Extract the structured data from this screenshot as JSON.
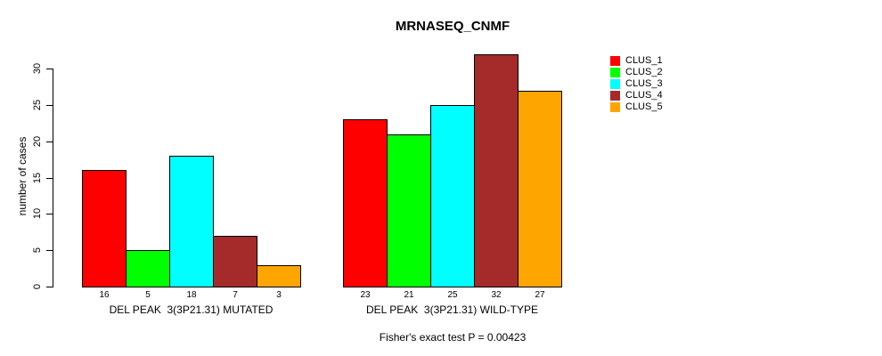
{
  "chart_data": {
    "type": "bar",
    "title": "MRNASEQ_CNMF",
    "ylabel": "number of cases",
    "ylim": [
      0,
      30
    ],
    "yticks": [
      0,
      5,
      10,
      15,
      20,
      25,
      30
    ],
    "grid": false,
    "legend_position": "top-right",
    "bar_value_labels_shown": true,
    "series": [
      {
        "name": "CLUS_1",
        "color": "#FF0000"
      },
      {
        "name": "CLUS_2",
        "color": "#00FF00"
      },
      {
        "name": "CLUS_3",
        "color": "#00FFFF"
      },
      {
        "name": "CLUS_4",
        "color": "#A52A2A"
      },
      {
        "name": "CLUS_5",
        "color": "#FFA500"
      }
    ],
    "groups": [
      {
        "label": "DEL PEAK  3(3P21.31) MUTATED",
        "values": [
          16,
          5,
          18,
          7,
          3
        ]
      },
      {
        "label": "DEL PEAK  3(3P21.31) WILD-TYPE",
        "values": [
          23,
          21,
          25,
          32,
          27
        ]
      }
    ],
    "annotation": "Fisher's exact test P = 0.00423"
  }
}
